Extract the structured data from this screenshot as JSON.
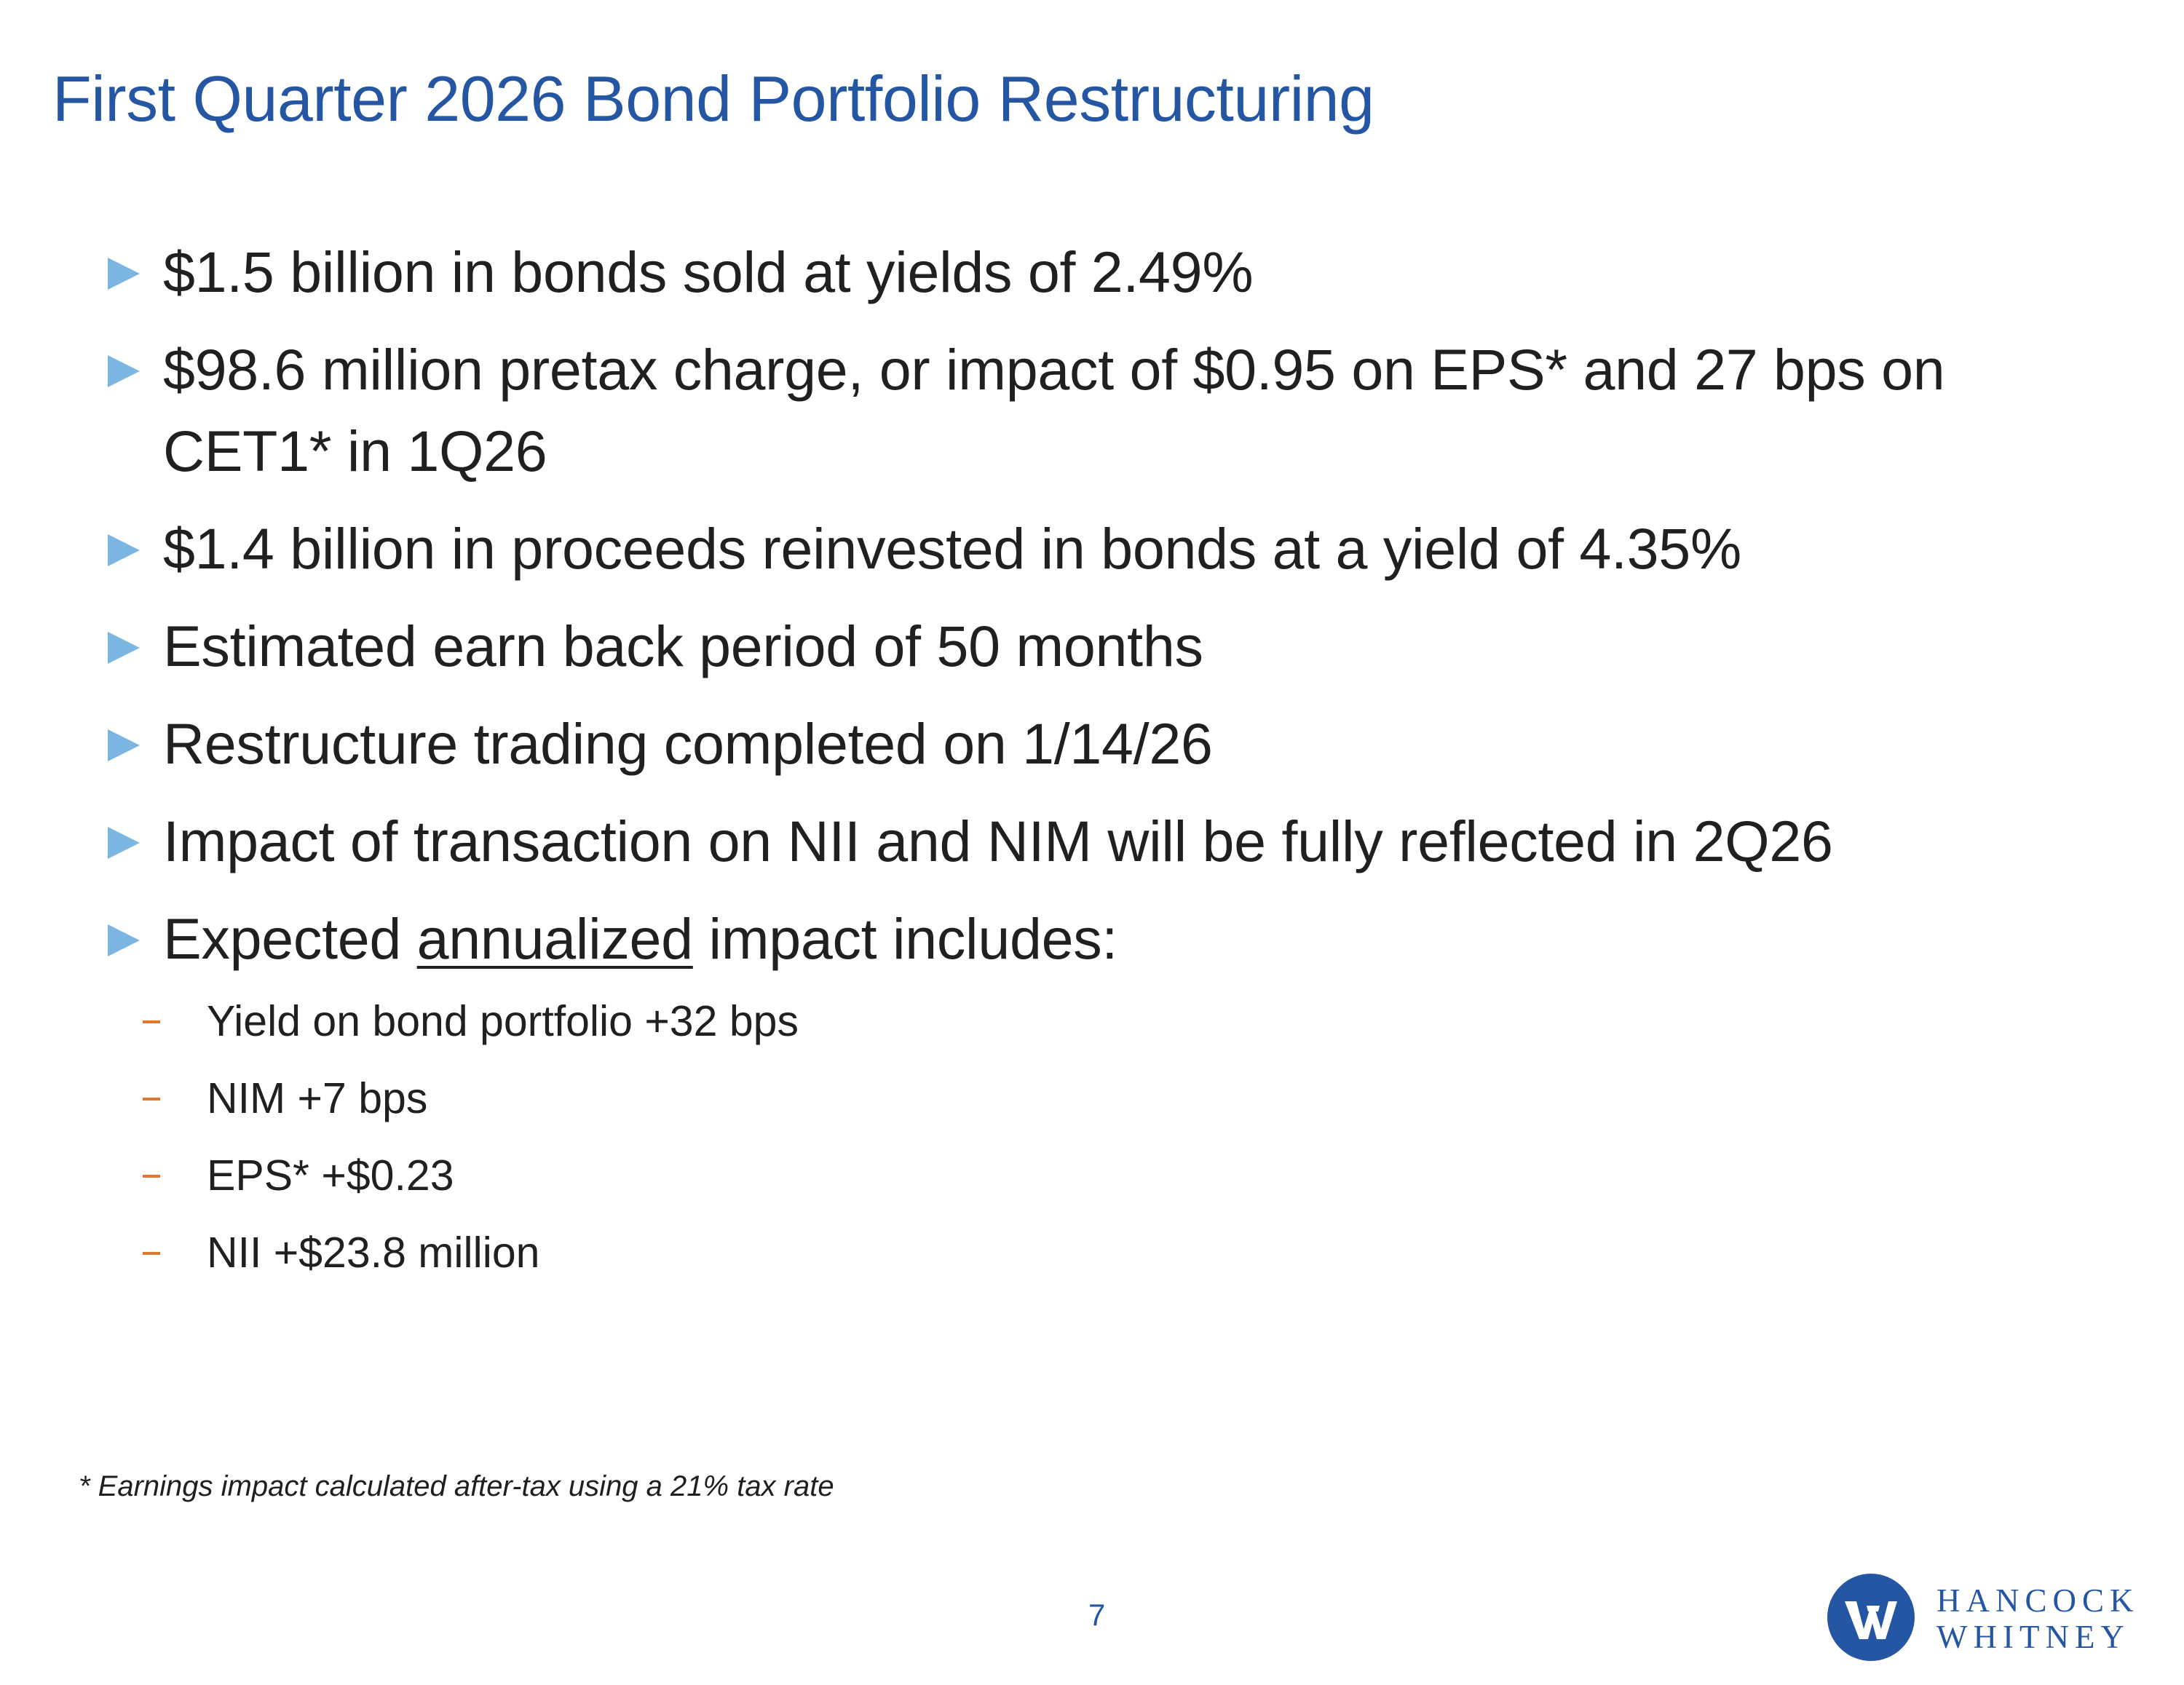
{
  "slide": {
    "title": "First Quarter 2026 Bond Portfolio Restructuring",
    "bullets": [
      "$1.5 billion in bonds sold at yields of 2.49%",
      "$98.6 million pretax charge, or impact of $0.95 on EPS* and 27 bps on CET1* in 1Q26",
      "$1.4 billion in proceeds reinvested in bonds at a yield of 4.35%",
      "Estimated earn back period of 50 months",
      "Restructure trading completed on 1/14/26",
      "Impact of transaction on NII and NIM will be fully reflected in 2Q26"
    ],
    "expected": {
      "prefix": "Expected ",
      "underlined": "annualized",
      "suffix": " impact includes:"
    },
    "sub_bullets": [
      "Yield on bond portfolio +32 bps",
      "NIM +7 bps",
      "EPS* +$0.23",
      "NII +$23.8 million"
    ],
    "footnote": "* Earnings impact calculated after-tax using a 21% tax rate",
    "page_number": "7"
  },
  "logo": {
    "line1": "HANCOCK",
    "line2": "WHITNEY",
    "mark_icon": "hancock-whitney-circle-mark"
  },
  "colors": {
    "title": "#2456a4",
    "bullet_marker": "#7ab6e0",
    "sub_dash": "#e0772c",
    "body_text": "#202020"
  }
}
